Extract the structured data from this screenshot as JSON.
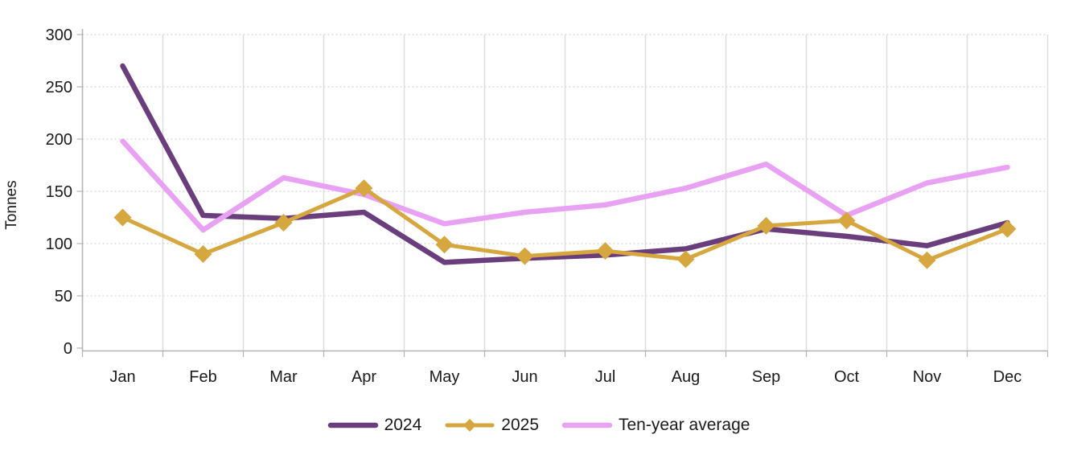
{
  "chart_data": {
    "type": "line",
    "title": "",
    "xlabel": "",
    "ylabel": "Tonnes",
    "ylim": [
      0,
      300
    ],
    "yticks": [
      0,
      50,
      100,
      150,
      200,
      250,
      300
    ],
    "categories": [
      "Jan",
      "Feb",
      "Mar",
      "Apr",
      "May",
      "Jun",
      "Jul",
      "Aug",
      "Sep",
      "Oct",
      "Nov",
      "Dec"
    ],
    "grid": {
      "vertical": "solid",
      "horizontal": "dashed"
    },
    "legend_position": "bottom",
    "series": [
      {
        "name": "2024",
        "color": "#6a3d7c",
        "marker": "none",
        "values": [
          270,
          127,
          124,
          130,
          82,
          86,
          89,
          95,
          114,
          107,
          98,
          120
        ]
      },
      {
        "name": "2025",
        "color": "#d6a63f",
        "marker": "diamond",
        "values": [
          125,
          90,
          120,
          153,
          99,
          88,
          93,
          85,
          117,
          122,
          84,
          114
        ]
      },
      {
        "name": "Ten-year average",
        "color": "#e9a1f3",
        "marker": "none",
        "values": [
          198,
          113,
          163,
          147,
          119,
          130,
          137,
          153,
          176,
          127,
          158,
          173
        ]
      }
    ]
  },
  "colors": {
    "background": "#ffffff",
    "axis": "#b3b3b3",
    "gridline_vertical": "#dcdcdc",
    "gridline_horizontal": "#c9c9c9",
    "text": "#1a1a1a"
  }
}
